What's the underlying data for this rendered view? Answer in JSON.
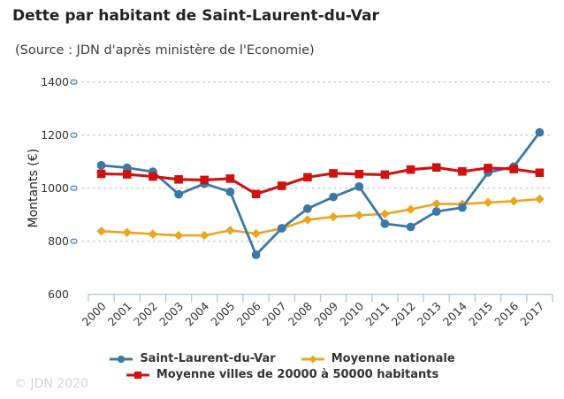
{
  "header": {
    "title": "Dette par habitant de Saint-Laurent-du-Var",
    "subtitle": "(Source : JDN d'après ministère de l'Economie)"
  },
  "footer": {
    "copyright": "© JDN 2020"
  },
  "colors": {
    "saint_laurent": "#3a78a5",
    "moyenne_nationale": "#eaa51f",
    "moyenne_villes": "#cf1110",
    "gridline": "#c9c9c9",
    "axis": "#b7c9d8",
    "title_text": "#222222",
    "tick_text": "#333333",
    "copyright_text": "#d2d5d8"
  },
  "chart_data": {
    "type": "line",
    "title": "Dette par habitant de Saint-Laurent-du-Var",
    "subtitle": "(Source : JDN d'après ministère de l'Economie)",
    "xlabel": "",
    "ylabel": "Montants (€)",
    "ylim": [
      600,
      1400
    ],
    "yticks": [
      600,
      800,
      1000,
      1200,
      1400
    ],
    "grid": "horizontal-dotted",
    "legend_position": "bottom",
    "categories": [
      "2000",
      "2001",
      "2002",
      "2003",
      "2004",
      "2005",
      "2006",
      "2007",
      "2008",
      "2009",
      "2010",
      "2011",
      "2012",
      "2013",
      "2014",
      "2015",
      "2016",
      "2017"
    ],
    "series": [
      {
        "name": "Saint-Laurent-du-Var",
        "color": "#3a78a5",
        "marker": "circle",
        "values": [
          1086,
          1077,
          1062,
          977,
          1017,
          986,
          749,
          849,
          923,
          967,
          1006,
          866,
          854,
          912,
          927,
          1059,
          1081,
          1210
        ]
      },
      {
        "name": "Moyenne nationale",
        "color": "#eaa51f",
        "marker": "diamond",
        "values": [
          838,
          833,
          827,
          822,
          822,
          841,
          829,
          848,
          881,
          892,
          898,
          903,
          920,
          941,
          940,
          946,
          951,
          959
        ]
      },
      {
        "name": "Moyenne villes de 20000 à 50000 habitants",
        "color": "#cf1110",
        "marker": "square",
        "values": [
          1054,
          1052,
          1044,
          1033,
          1031,
          1036,
          978,
          1009,
          1041,
          1056,
          1053,
          1051,
          1070,
          1078,
          1063,
          1076,
          1072,
          1058
        ]
      }
    ]
  }
}
